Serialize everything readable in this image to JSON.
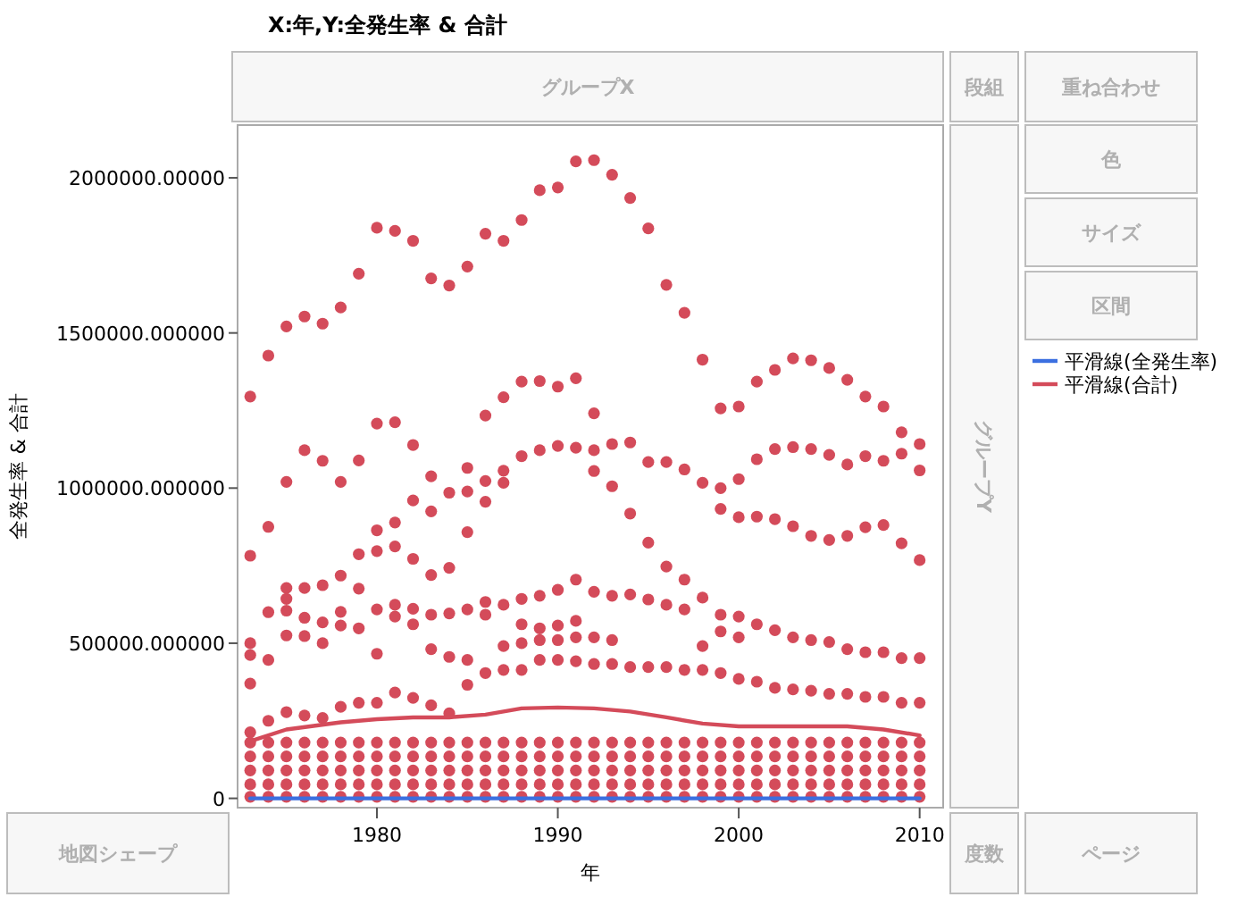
{
  "chart_data": {
    "type": "scatter",
    "title": "X:年,Y:全発生率 & 合計",
    "xlabel": "年",
    "ylabel": "全発生率 & 合計",
    "annotations": [
      "グループX",
      "段組",
      "重ね合わせ",
      "色",
      "サイズ",
      "区間",
      "グループY",
      "地図シェープ",
      "度数",
      "ページ"
    ],
    "xlim": [
      1972.3,
      2011.3
    ],
    "xticks": [
      1980,
      1990,
      2000,
      2010
    ],
    "ylim": [
      -30000,
      2170000
    ],
    "yticks": [
      {
        "value": 0,
        "label": "0"
      },
      {
        "value": 500000,
        "label": "500000.000000"
      },
      {
        "value": 1000000,
        "label": "1000000.000000"
      },
      {
        "value": 1500000,
        "label": "1500000.000000"
      },
      {
        "value": 2000000,
        "label": "2000000.00000"
      }
    ],
    "marker": "circle",
    "grid": false,
    "legend": "right",
    "series": [
      {
        "color": "#d44b5a",
        "x": [
          1973,
          1974,
          1975,
          1976,
          1977,
          1978,
          1979,
          1980,
          1981,
          1982,
          1983,
          1984,
          1985,
          1986,
          1987,
          1988,
          1989,
          1990,
          1991,
          1992,
          1993,
          1994,
          1995,
          1996,
          1997,
          1998,
          1999,
          2000,
          2001,
          2002,
          2003,
          2004,
          2005,
          2006,
          2007,
          2008,
          2009,
          2010
        ],
        "values": [
          1295000,
          1427000,
          1521000,
          1553000,
          1530000,
          1582000,
          1691000,
          1839000,
          1829000,
          1797000,
          1676000,
          1653000,
          1714000,
          1820000,
          1797000,
          1864000,
          1960000,
          1969000,
          2053000,
          2057000,
          2010000,
          1935000,
          1837000,
          1655000,
          1565000,
          1414000,
          1257000,
          1263000,
          1343000,
          1381000,
          1418000,
          1412000,
          1387000,
          1349000,
          1295000,
          1263000,
          1180000,
          1142000
        ]
      },
      {
        "color": "#d44b5a",
        "x": [
          1975,
          1976,
          1977,
          1978,
          1979,
          1980,
          1981,
          1982,
          1986,
          1987,
          1988,
          1989,
          1990,
          1991,
          1992,
          1993,
          1994,
          1995,
          1996,
          1997,
          1998,
          1999,
          2000,
          2001,
          2002,
          2003,
          2004,
          2005,
          2006,
          2007,
          2008,
          2009,
          2010,
          1988,
          1989,
          1990,
          1991,
          1992,
          1992,
          1993
        ],
        "values": [
          1020000,
          1122000,
          1088000,
          1020000,
          1089000,
          1208000,
          1212000,
          1139000,
          1234000,
          1293000,
          1343000,
          1345000,
          1327000,
          1354000,
          1241000,
          1142000,
          1147000,
          1084000,
          1084000,
          1060000,
          1017000,
          1000000,
          1029000,
          1093000,
          1126000,
          1132000,
          1126000,
          1107000,
          1076000,
          1103000,
          1088000,
          1111000,
          1057000,
          1103000,
          1122000,
          1136000,
          1130000,
          1122000,
          1055000,
          1006000
        ]
      },
      {
        "color": "#d44b5a",
        "x": [
          1973,
          1973,
          1973,
          1973,
          1974,
          1974,
          1974,
          1975,
          1975,
          1975,
          1975,
          1976,
          1976,
          1976,
          1977,
          1977,
          1977,
          1978,
          1978,
          1978,
          1979,
          1979,
          1979,
          1980,
          1980,
          1980,
          1980,
          1981,
          1981,
          1981,
          1981,
          1982,
          1982,
          1982,
          1982,
          1983,
          1983,
          1983,
          1983,
          1983,
          1984,
          1984,
          1984,
          1984,
          1985,
          1985,
          1985,
          1985,
          1985,
          1986,
          1986,
          1986,
          1986,
          1987,
          1987,
          1987,
          1987,
          1988,
          1988,
          1988,
          1989,
          1989,
          1989,
          1990,
          1990,
          1990,
          1991,
          1991,
          1991,
          1992,
          1992,
          1993,
          1993,
          1994,
          1994,
          1995,
          1995,
          1996,
          1996,
          1997,
          1997,
          1998,
          1998,
          1999,
          1999,
          1999,
          2000,
          2000,
          2000,
          2001,
          2001,
          2002,
          2002,
          2003,
          2003,
          2004,
          2004,
          2005,
          2005,
          2006,
          2006,
          2007,
          2007,
          2008,
          2008,
          2009,
          2009,
          2010,
          2010
        ],
        "values": [
          782000,
          500000,
          462000,
          370000,
          875000,
          600000,
          446000,
          678000,
          643000,
          605000,
          525000,
          678000,
          582000,
          523000,
          687000,
          567000,
          500000,
          718000,
          601000,
          557000,
          787000,
          676000,
          548000,
          864000,
          797000,
          609000,
          466000,
          889000,
          812000,
          624000,
          586000,
          960000,
          772000,
          611000,
          561000,
          1038000,
          925000,
          720000,
          592000,
          481000,
          985000,
          743000,
          596000,
          456000,
          1065000,
          989000,
          858000,
          609000,
          446000,
          1023000,
          956000,
          633000,
          592000,
          1056000,
          1017000,
          624000,
          491000,
          643000,
          561000,
          500000,
          653000,
          548000,
          510000,
          672000,
          557000,
          510000,
          705000,
          572000,
          519000,
          666000,
          519000,
          653000,
          510000,
          918000,
          657000,
          824000,
          641000,
          747000,
          624000,
          705000,
          609000,
          647000,
          491000,
          933000,
          592000,
          538000,
          906000,
          586000,
          519000,
          908000,
          561000,
          900000,
          542000,
          877000,
          519000,
          846000,
          510000,
          833000,
          504000,
          846000,
          481000,
          874000,
          471000,
          881000,
          471000,
          822000,
          452000,
          768000,
          452000
        ]
      },
      {
        "color": "#d44b5a",
        "x": [
          1973,
          1974,
          1975,
          1976,
          1977,
          1978,
          1979,
          1980,
          1981,
          1982,
          1983,
          1984,
          1985,
          1986,
          1987,
          1988,
          1989,
          1990,
          1991,
          1992,
          1993,
          1994,
          1995,
          1996,
          1997,
          1998,
          1999,
          2000,
          2001,
          2002,
          2003,
          2004,
          2005,
          2006,
          2007,
          2008,
          2009,
          2010
        ],
        "values": [
          213000,
          250000,
          278000,
          267000,
          259000,
          295000,
          308000,
          308000,
          341000,
          324000,
          300000,
          274000,
          366000,
          404000,
          414000,
          414000,
          446000,
          446000,
          442000,
          433000,
          433000,
          423000,
          423000,
          423000,
          414000,
          414000,
          404000,
          385000,
          376000,
          356000,
          351000,
          347000,
          337000,
          337000,
          327000,
          327000,
          308000,
          308000
        ]
      },
      {
        "color": "#d44b5a",
        "x": [
          1973,
          1974,
          1975,
          1976,
          1977,
          1978,
          1979,
          1980,
          1981,
          1982,
          1983,
          1984,
          1985,
          1986,
          1987,
          1988,
          1989,
          1990,
          1991,
          1992,
          1993,
          1994,
          1995,
          1996,
          1997,
          1998,
          1999,
          2000,
          2001,
          2002,
          2003,
          2004,
          2005,
          2006,
          2007,
          2008,
          2009,
          2010
        ],
        "values": [
          180000,
          180000,
          180000,
          180000,
          180000,
          180000,
          180000,
          180000,
          180000,
          180000,
          180000,
          180000,
          180000,
          180000,
          180000,
          180000,
          180000,
          180000,
          180000,
          180000,
          180000,
          180000,
          180000,
          180000,
          180000,
          180000,
          180000,
          180000,
          180000,
          180000,
          180000,
          180000,
          180000,
          180000,
          180000,
          180000,
          180000,
          180000
        ]
      },
      {
        "color": "#d44b5a",
        "x": [
          1973,
          1974,
          1975,
          1976,
          1977,
          1978,
          1979,
          1980,
          1981,
          1982,
          1983,
          1984,
          1985,
          1986,
          1987,
          1988,
          1989,
          1990,
          1991,
          1992,
          1993,
          1994,
          1995,
          1996,
          1997,
          1998,
          1999,
          2000,
          2001,
          2002,
          2003,
          2004,
          2005,
          2006,
          2007,
          2008,
          2009,
          2010
        ],
        "values": [
          135000,
          135000,
          135000,
          135000,
          135000,
          135000,
          135000,
          135000,
          135000,
          135000,
          135000,
          135000,
          135000,
          135000,
          135000,
          135000,
          135000,
          135000,
          135000,
          135000,
          135000,
          135000,
          135000,
          135000,
          135000,
          135000,
          135000,
          135000,
          135000,
          135000,
          135000,
          135000,
          135000,
          135000,
          135000,
          135000,
          135000,
          135000
        ]
      },
      {
        "color": "#d44b5a",
        "x": [
          1973,
          1974,
          1975,
          1976,
          1977,
          1978,
          1979,
          1980,
          1981,
          1982,
          1983,
          1984,
          1985,
          1986,
          1987,
          1988,
          1989,
          1990,
          1991,
          1992,
          1993,
          1994,
          1995,
          1996,
          1997,
          1998,
          1999,
          2000,
          2001,
          2002,
          2003,
          2004,
          2005,
          2006,
          2007,
          2008,
          2009,
          2010
        ],
        "values": [
          90000,
          90000,
          90000,
          90000,
          90000,
          90000,
          90000,
          90000,
          90000,
          90000,
          90000,
          90000,
          90000,
          90000,
          90000,
          90000,
          90000,
          90000,
          90000,
          90000,
          90000,
          90000,
          90000,
          90000,
          90000,
          90000,
          90000,
          90000,
          90000,
          90000,
          90000,
          90000,
          90000,
          90000,
          90000,
          90000,
          90000,
          90000
        ]
      },
      {
        "color": "#d44b5a",
        "x": [
          1973,
          1974,
          1975,
          1976,
          1977,
          1978,
          1979,
          1980,
          1981,
          1982,
          1983,
          1984,
          1985,
          1986,
          1987,
          1988,
          1989,
          1990,
          1991,
          1992,
          1993,
          1994,
          1995,
          1996,
          1997,
          1998,
          1999,
          2000,
          2001,
          2002,
          2003,
          2004,
          2005,
          2006,
          2007,
          2008,
          2009,
          2010
        ],
        "values": [
          45000,
          45000,
          45000,
          45000,
          45000,
          45000,
          45000,
          45000,
          45000,
          45000,
          45000,
          45000,
          45000,
          45000,
          45000,
          45000,
          45000,
          45000,
          45000,
          45000,
          45000,
          45000,
          45000,
          45000,
          45000,
          45000,
          45000,
          45000,
          45000,
          45000,
          45000,
          45000,
          45000,
          45000,
          45000,
          45000,
          45000,
          45000
        ]
      },
      {
        "color": "#d44b5a",
        "x": [
          1973,
          1974,
          1975,
          1976,
          1977,
          1978,
          1979,
          1980,
          1981,
          1982,
          1983,
          1984,
          1985,
          1986,
          1987,
          1988,
          1989,
          1990,
          1991,
          1992,
          1993,
          1994,
          1995,
          1996,
          1997,
          1998,
          1999,
          2000,
          2001,
          2002,
          2003,
          2004,
          2005,
          2006,
          2007,
          2008,
          2009,
          2010
        ],
        "values": [
          5000,
          5000,
          5000,
          5000,
          5000,
          5000,
          5000,
          5000,
          5000,
          5000,
          5000,
          5000,
          5000,
          5000,
          5000,
          5000,
          5000,
          5000,
          5000,
          5000,
          5000,
          5000,
          5000,
          5000,
          5000,
          5000,
          5000,
          5000,
          5000,
          5000,
          5000,
          5000,
          5000,
          5000,
          5000,
          5000,
          5000,
          5000
        ]
      },
      {
        "type": "line",
        "marker": "none",
        "name": "平滑線(合計)",
        "color": "#d44b5a",
        "x": [
          1973,
          1975,
          1978,
          1980,
          1982,
          1984,
          1986,
          1988,
          1990,
          1992,
          1994,
          1996,
          1998,
          2000,
          2002,
          2004,
          2006,
          2008,
          2010
        ],
        "values": [
          184000,
          222000,
          245000,
          255000,
          261000,
          261000,
          270000,
          290000,
          293000,
          290000,
          280000,
          261000,
          241000,
          232000,
          232000,
          232000,
          232000,
          222000,
          203000
        ]
      },
      {
        "type": "line",
        "marker": "none",
        "name": "平滑線(全発生率)",
        "color": "#3b6fe0",
        "x": [
          1973,
          1980,
          1990,
          2000,
          2010
        ],
        "values": [
          0,
          0,
          0,
          0,
          0
        ]
      }
    ]
  }
}
